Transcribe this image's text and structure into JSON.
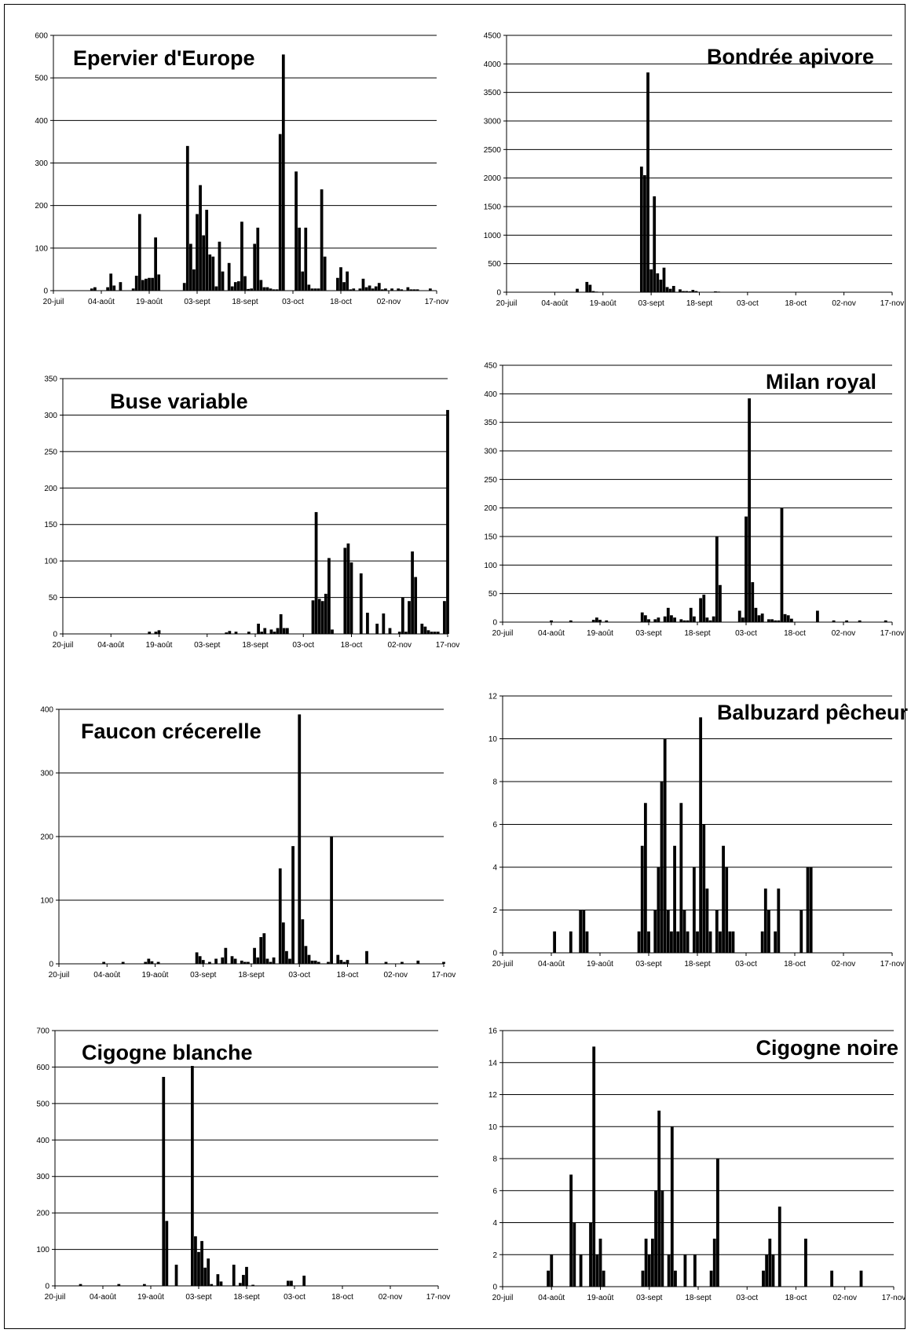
{
  "x_ticks": [
    "20-juil",
    "04-août",
    "19-août",
    "03-sept",
    "18-sept",
    "03-oct",
    "18-oct",
    "02-nov",
    "17-nov"
  ],
  "chart_data": [
    {
      "type": "bar",
      "title": "Epervier d'Europe",
      "xlabel": "",
      "ylabel": "",
      "ylim": [
        0,
        600
      ],
      "yticks": [
        0,
        100,
        200,
        300,
        400,
        500,
        600
      ],
      "grid": true,
      "x_tick_labels": [
        "20-juil",
        "04-août",
        "19-août",
        "03-sept",
        "18-sept",
        "03-oct",
        "18-oct",
        "02-nov",
        "17-nov"
      ],
      "x_day_range": [
        0,
        120
      ],
      "days": [
        12,
        13,
        17,
        18,
        19,
        21,
        25,
        26,
        27,
        28,
        29,
        30,
        31,
        32,
        33,
        41,
        42,
        43,
        44,
        45,
        46,
        47,
        48,
        49,
        50,
        51,
        52,
        53,
        55,
        56,
        57,
        58,
        59,
        60,
        61,
        62,
        63,
        64,
        65,
        66,
        67,
        68,
        69,
        70,
        71,
        72,
        76,
        77,
        78,
        79,
        80,
        81,
        82,
        83,
        84,
        85,
        89,
        90,
        91,
        92,
        93,
        94,
        96,
        97,
        98,
        99,
        100,
        101,
        102,
        103,
        104,
        106,
        108,
        109,
        111,
        112,
        113,
        114,
        118
      ],
      "values": [
        5,
        8,
        8,
        40,
        12,
        20,
        5,
        35,
        180,
        25,
        28,
        30,
        30,
        125,
        38,
        18,
        340,
        110,
        50,
        180,
        248,
        130,
        190,
        85,
        80,
        10,
        115,
        45,
        65,
        10,
        20,
        22,
        162,
        34,
        4,
        5,
        110,
        148,
        25,
        8,
        8,
        5,
        3,
        3,
        368,
        555,
        280,
        148,
        45,
        148,
        14,
        5,
        5,
        5,
        238,
        80,
        30,
        55,
        20,
        45,
        3,
        5,
        5,
        28,
        8,
        12,
        5,
        10,
        18,
        3,
        5,
        5,
        5,
        3,
        8,
        3,
        3,
        3,
        5
      ],
      "title_anchor": "start"
    },
    {
      "type": "bar",
      "title": "Bondrée apivore",
      "xlabel": "",
      "ylabel": "",
      "ylim": [
        0,
        4500
      ],
      "yticks": [
        0,
        500,
        1000,
        1500,
        2000,
        2500,
        3000,
        3500,
        4000,
        4500
      ],
      "grid": true,
      "x_tick_labels": [
        "20-juil",
        "04-août",
        "19-août",
        "03-sept",
        "18-sept",
        "03-oct",
        "18-oct",
        "02-nov",
        "17-nov"
      ],
      "x_day_range": [
        0,
        120
      ],
      "days": [
        22,
        25,
        26,
        27,
        28,
        42,
        43,
        44,
        45,
        46,
        47,
        48,
        49,
        50,
        51,
        52,
        54,
        55,
        56,
        57,
        58,
        59,
        62,
        65,
        66,
        67,
        68,
        71
      ],
      "values": [
        60,
        180,
        130,
        20,
        10,
        2200,
        2050,
        3850,
        400,
        1680,
        330,
        220,
        430,
        90,
        60,
        110,
        50,
        20,
        20,
        15,
        40,
        20,
        5,
        15,
        10,
        5,
        5,
        5
      ],
      "title_anchor": "end"
    },
    {
      "type": "bar",
      "title": "Buse variable",
      "xlabel": "",
      "ylabel": "",
      "ylim": [
        0,
        350
      ],
      "yticks": [
        0,
        50,
        100,
        150,
        200,
        250,
        300,
        350
      ],
      "grid": true,
      "x_tick_labels": [
        "20-juil",
        "04-août",
        "19-août",
        "03-sept",
        "18-sept",
        "03-oct",
        "18-oct",
        "02-nov",
        "17-nov"
      ],
      "x_day_range": [
        0,
        120
      ],
      "days": [
        27,
        29,
        30,
        51,
        52,
        54,
        58,
        61,
        62,
        63,
        65,
        66,
        67,
        68,
        69,
        70,
        78,
        79,
        80,
        81,
        82,
        83,
        84,
        88,
        89,
        90,
        93,
        95,
        98,
        100,
        102,
        105,
        106,
        107,
        108,
        109,
        110,
        112,
        113,
        114,
        115,
        116,
        117,
        119,
        120
      ],
      "values": [
        3,
        3,
        5,
        2,
        4,
        3,
        3,
        14,
        3,
        8,
        6,
        3,
        8,
        27,
        8,
        8,
        46,
        167,
        48,
        45,
        55,
        104,
        6,
        118,
        124,
        98,
        83,
        29,
        14,
        28,
        8,
        3,
        50,
        3,
        45,
        113,
        78,
        14,
        10,
        5,
        3,
        3,
        3,
        45,
        307
      ],
      "title_anchor": "start"
    },
    {
      "type": "bar",
      "title": "Milan royal",
      "xlabel": "",
      "ylabel": "",
      "ylim": [
        0,
        450
      ],
      "yticks": [
        0,
        50,
        100,
        150,
        200,
        250,
        300,
        350,
        400,
        450
      ],
      "grid": true,
      "x_tick_labels": [
        "20-juil",
        "04-août",
        "19-août",
        "03-sept",
        "18-sept",
        "03-oct",
        "18-oct",
        "02-nov",
        "17-nov"
      ],
      "x_day_range": [
        0,
        120
      ],
      "days": [
        15,
        21,
        28,
        29,
        30,
        32,
        43,
        44,
        45,
        47,
        48,
        50,
        51,
        52,
        53,
        55,
        56,
        57,
        58,
        59,
        61,
        62,
        63,
        64,
        65,
        66,
        67,
        73,
        74,
        75,
        76,
        77,
        78,
        79,
        80,
        82,
        83,
        84,
        85,
        86,
        87,
        88,
        89,
        97,
        102,
        106,
        110,
        118
      ],
      "values": [
        3,
        3,
        4,
        8,
        4,
        3,
        17,
        12,
        5,
        5,
        8,
        10,
        25,
        12,
        8,
        5,
        3,
        3,
        25,
        10,
        42,
        48,
        8,
        3,
        10,
        150,
        65,
        20,
        8,
        185,
        392,
        70,
        25,
        12,
        15,
        5,
        5,
        3,
        3,
        200,
        14,
        12,
        6,
        20,
        3,
        3,
        3,
        3
      ],
      "title_anchor": "end"
    },
    {
      "type": "bar",
      "title": "Faucon crécerelle",
      "xlabel": "",
      "ylabel": "",
      "ylim": [
        0,
        400
      ],
      "yticks": [
        0,
        100,
        200,
        300,
        400
      ],
      "grid": true,
      "x_tick_labels": [
        "20-juil",
        "04-août",
        "19-août",
        "03-sept",
        "18-sept",
        "03-oct",
        "18-oct",
        "02-nov",
        "17-nov"
      ],
      "x_day_range": [
        0,
        120
      ],
      "days": [
        14,
        20,
        27,
        28,
        29,
        31,
        43,
        44,
        45,
        47,
        49,
        51,
        52,
        54,
        55,
        57,
        58,
        59,
        61,
        62,
        63,
        64,
        65,
        66,
        67,
        69,
        70,
        71,
        72,
        73,
        75,
        76,
        77,
        78,
        79,
        80,
        81,
        84,
        85,
        87,
        88,
        89,
        90,
        96,
        102,
        107,
        112,
        120
      ],
      "values": [
        3,
        3,
        3,
        8,
        4,
        3,
        18,
        12,
        6,
        3,
        8,
        10,
        25,
        12,
        8,
        5,
        3,
        3,
        25,
        10,
        42,
        48,
        8,
        3,
        10,
        150,
        65,
        20,
        8,
        185,
        392,
        70,
        28,
        14,
        5,
        5,
        3,
        3,
        200,
        14,
        6,
        3,
        6,
        20,
        3,
        3,
        5,
        3
      ],
      "title_anchor": "start"
    },
    {
      "type": "bar",
      "title": "Balbuzard pêcheur",
      "xlabel": "",
      "ylabel": "",
      "ylim": [
        0,
        12
      ],
      "yticks": [
        0,
        2,
        4,
        6,
        8,
        10,
        12
      ],
      "grid": true,
      "x_tick_labels": [
        "20-juil",
        "04-août",
        "19-août",
        "03-sept",
        "18-sept",
        "03-oct",
        "18-oct",
        "02-nov",
        "17-nov"
      ],
      "x_day_range": [
        0,
        120
      ],
      "days": [
        16,
        21,
        24,
        25,
        26,
        42,
        43,
        44,
        45,
        47,
        48,
        49,
        50,
        51,
        52,
        53,
        54,
        55,
        56,
        57,
        59,
        60,
        61,
        62,
        63,
        64,
        66,
        67,
        68,
        69,
        70,
        71,
        80,
        81,
        82,
        84,
        85,
        92,
        94,
        95
      ],
      "values": [
        1,
        1,
        2,
        2,
        1,
        1,
        5,
        7,
        1,
        2,
        4,
        8,
        10,
        2,
        1,
        5,
        1,
        7,
        2,
        1,
        4,
        1,
        11,
        6,
        3,
        1,
        2,
        1,
        5,
        4,
        1,
        1,
        1,
        3,
        2,
        1,
        3,
        2,
        4,
        4
      ],
      "title_anchor": "end"
    },
    {
      "type": "bar",
      "title": "Cigogne blanche",
      "xlabel": "",
      "ylabel": "",
      "ylim": [
        0,
        700
      ],
      "yticks": [
        0,
        100,
        200,
        300,
        400,
        500,
        600,
        700
      ],
      "grid": true,
      "x_tick_labels": [
        "20-juil",
        "04-août",
        "19-août",
        "03-sept",
        "18-sept",
        "03-oct",
        "18-oct",
        "02-nov",
        "17-nov"
      ],
      "x_day_range": [
        0,
        120
      ],
      "days": [
        8,
        20,
        28,
        34,
        35,
        38,
        43,
        44,
        45,
        46,
        47,
        48,
        49,
        51,
        52,
        56,
        58,
        59,
        60,
        62,
        73,
        74,
        78
      ],
      "values": [
        5,
        5,
        5,
        573,
        178,
        58,
        603,
        136,
        93,
        123,
        50,
        75,
        5,
        32,
        12,
        58,
        8,
        30,
        52,
        3,
        14,
        14,
        28
      ],
      "title_anchor": "start"
    },
    {
      "type": "bar",
      "title": "Cigogne noire",
      "xlabel": "",
      "ylabel": "",
      "ylim": [
        0,
        16
      ],
      "yticks": [
        0,
        2,
        4,
        6,
        8,
        10,
        12,
        14,
        16
      ],
      "grid": true,
      "x_tick_labels": [
        "20-juil",
        "04-août",
        "19-août",
        "03-sept",
        "18-sept",
        "03-oct",
        "18-oct",
        "02-nov",
        "17-nov"
      ],
      "x_day_range": [
        0,
        120
      ],
      "days": [
        14,
        15,
        21,
        22,
        24,
        27,
        28,
        29,
        30,
        31,
        43,
        44,
        45,
        46,
        47,
        48,
        49,
        51,
        52,
        53,
        56,
        59,
        64,
        65,
        66,
        80,
        81,
        82,
        83,
        85,
        93,
        101,
        110
      ],
      "values": [
        1,
        2,
        7,
        4,
        2,
        4,
        15,
        2,
        3,
        1,
        1,
        3,
        2,
        3,
        6,
        11,
        6,
        2,
        10,
        1,
        2,
        2,
        1,
        3,
        8,
        1,
        2,
        3,
        2,
        5,
        3,
        1,
        1
      ],
      "title_anchor": "end"
    }
  ]
}
